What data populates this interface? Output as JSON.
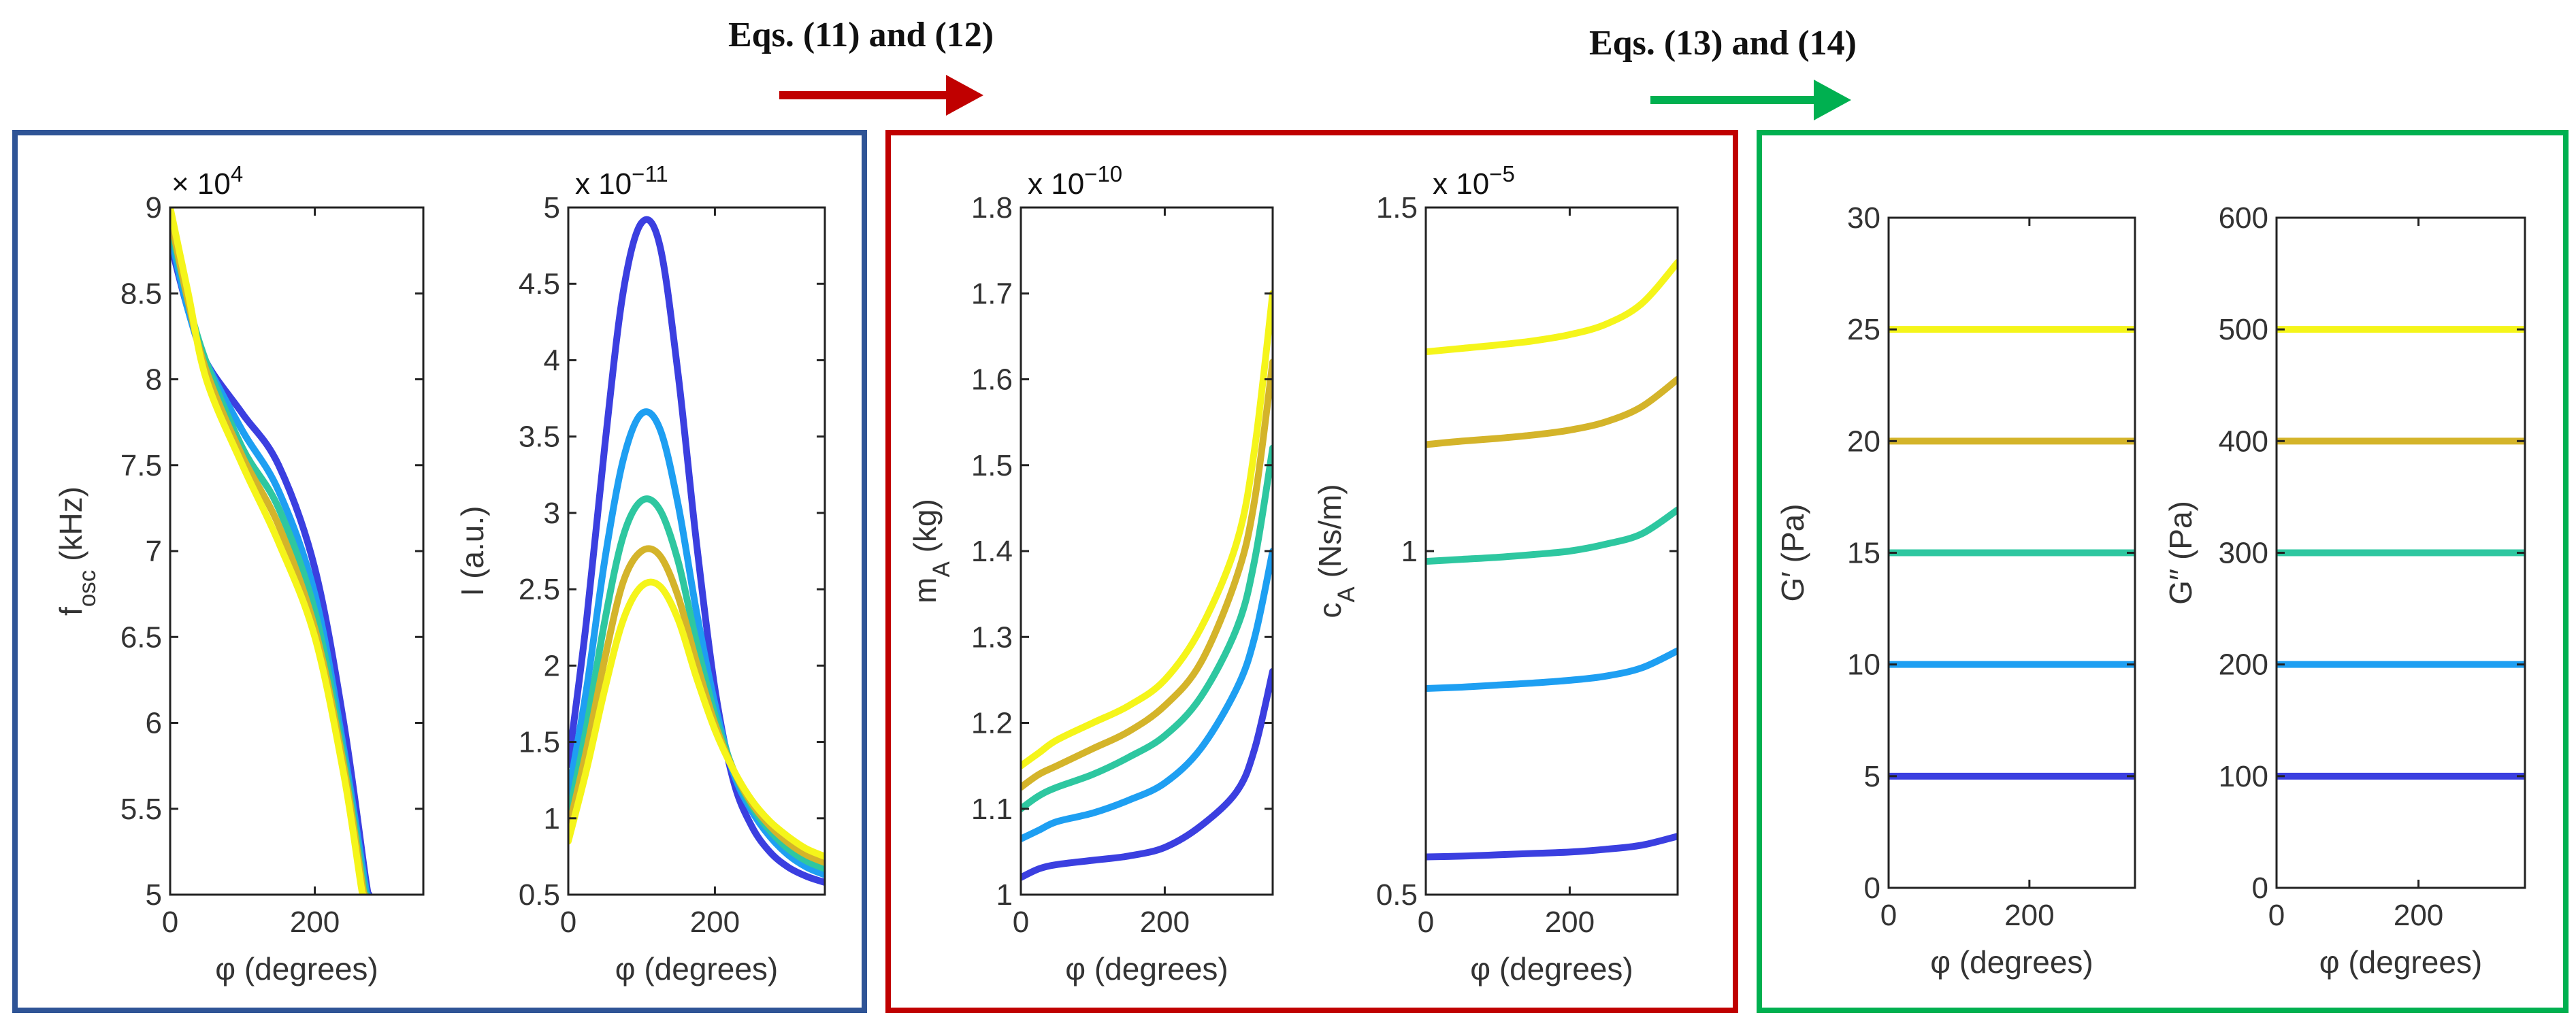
{
  "arrows": [
    {
      "label": "Eqs. (11) and (12)",
      "color": "#c00000"
    },
    {
      "label": "Eqs. (13) and (14)",
      "color": "#00b050"
    }
  ],
  "panels": [
    {
      "name": "panel-input",
      "border_color": "#2f5496"
    },
    {
      "name": "panel-lumped",
      "border_color": "#c00000"
    },
    {
      "name": "panel-material",
      "border_color": "#00b050"
    }
  ],
  "series_colors": [
    "#3b3fe0",
    "#1e9ff2",
    "#2ec7a0",
    "#d4b42a",
    "#f5f51a"
  ],
  "chart_data": [
    {
      "type": "line",
      "id": "fosc",
      "ylabel": "f_osc (kHz)",
      "xlabel": "φ (degrees)",
      "exponent": "× 10^4",
      "xlim": [
        0,
        350
      ],
      "ylim": [
        5,
        9
      ],
      "xticks": [
        0,
        200
      ],
      "xtick_labels": [
        "0",
        "200"
      ],
      "yticks": [
        5,
        5.5,
        6,
        6.5,
        7,
        7.5,
        8,
        8.5,
        9
      ],
      "ytick_labels": [
        "5",
        "5.5",
        "6",
        "6.5",
        "7",
        "7.5",
        "8",
        "8.5",
        "9"
      ],
      "series": [
        {
          "name": "s1",
          "x": [
            0,
            25,
            50,
            100,
            150,
            200,
            240,
            270,
            275
          ],
          "y": [
            8.8,
            8.4,
            8.1,
            7.8,
            7.5,
            6.9,
            6.0,
            5.1,
            5.0
          ]
        },
        {
          "name": "s2",
          "x": [
            0,
            25,
            50,
            100,
            150,
            200,
            240,
            270,
            273
          ],
          "y": [
            8.85,
            8.4,
            8.1,
            7.7,
            7.35,
            6.75,
            5.85,
            5.05,
            5.0
          ]
        },
        {
          "name": "s3",
          "x": [
            0,
            25,
            50,
            100,
            150,
            200,
            240,
            268,
            271
          ],
          "y": [
            8.9,
            8.45,
            8.1,
            7.6,
            7.25,
            6.65,
            5.8,
            5.05,
            5.0
          ]
        },
        {
          "name": "s4",
          "x": [
            0,
            25,
            50,
            100,
            150,
            200,
            240,
            266,
            269
          ],
          "y": [
            8.95,
            8.45,
            8.05,
            7.55,
            7.15,
            6.55,
            5.75,
            5.05,
            5.0
          ]
        },
        {
          "name": "s5",
          "x": [
            0,
            25,
            50,
            100,
            150,
            200,
            240,
            264,
            267
          ],
          "y": [
            9.0,
            8.5,
            8.0,
            7.5,
            7.05,
            6.5,
            5.7,
            5.05,
            5.0
          ]
        }
      ]
    },
    {
      "type": "line",
      "id": "intensity",
      "ylabel": "I (a.u.)",
      "xlabel": "φ (degrees)",
      "exponent": "x 10^−11",
      "xlim": [
        0,
        350
      ],
      "ylim": [
        0.5,
        5
      ],
      "xticks": [
        0,
        200
      ],
      "xtick_labels": [
        "0",
        "200"
      ],
      "yticks": [
        0.5,
        1,
        1.5,
        2,
        2.5,
        3,
        3.5,
        4,
        4.5,
        5
      ],
      "ytick_labels": [
        "0.5",
        "1",
        "1.5",
        "2",
        "2.5",
        "3",
        "3.5",
        "4",
        "4.5",
        "5"
      ],
      "series": [
        {
          "name": "s1",
          "x": [
            0,
            25,
            50,
            75,
            100,
            125,
            150,
            175,
            200,
            225,
            250,
            275,
            300,
            325,
            350
          ],
          "y": [
            1.35,
            2.3,
            3.45,
            4.45,
            4.9,
            4.75,
            3.9,
            2.8,
            1.85,
            1.25,
            0.95,
            0.78,
            0.68,
            0.62,
            0.58
          ]
        },
        {
          "name": "s2",
          "x": [
            0,
            25,
            50,
            75,
            100,
            125,
            150,
            175,
            200,
            225,
            250,
            275,
            300,
            325,
            350
          ],
          "y": [
            1.15,
            1.85,
            2.7,
            3.35,
            3.65,
            3.55,
            3.05,
            2.35,
            1.75,
            1.3,
            1.05,
            0.88,
            0.76,
            0.68,
            0.63
          ]
        },
        {
          "name": "s3",
          "x": [
            0,
            25,
            50,
            75,
            100,
            125,
            150,
            175,
            200,
            225,
            250,
            275,
            300,
            325,
            350
          ],
          "y": [
            1.0,
            1.6,
            2.3,
            2.85,
            3.08,
            3.02,
            2.68,
            2.15,
            1.68,
            1.32,
            1.08,
            0.92,
            0.8,
            0.72,
            0.67
          ]
        },
        {
          "name": "s4",
          "x": [
            0,
            25,
            50,
            75,
            100,
            125,
            150,
            175,
            200,
            225,
            250,
            275,
            300,
            325,
            350
          ],
          "y": [
            0.92,
            1.45,
            2.05,
            2.55,
            2.75,
            2.72,
            2.45,
            2.02,
            1.62,
            1.32,
            1.1,
            0.95,
            0.84,
            0.76,
            0.71
          ]
        },
        {
          "name": "s5",
          "x": [
            0,
            25,
            50,
            75,
            100,
            125,
            150,
            175,
            200,
            225,
            250,
            275,
            300,
            325,
            350
          ],
          "y": [
            0.85,
            1.32,
            1.85,
            2.3,
            2.52,
            2.52,
            2.3,
            1.92,
            1.58,
            1.32,
            1.12,
            0.98,
            0.88,
            0.8,
            0.75
          ]
        }
      ]
    },
    {
      "type": "line",
      "id": "mass",
      "ylabel": "m_A (kg)",
      "xlabel": "φ (degrees)",
      "exponent": "x 10^−10",
      "xlim": [
        0,
        350
      ],
      "ylim": [
        1,
        1.8
      ],
      "xticks": [
        0,
        200
      ],
      "xtick_labels": [
        "0",
        "200"
      ],
      "yticks": [
        1,
        1.1,
        1.2,
        1.3,
        1.4,
        1.5,
        1.6,
        1.7,
        1.8
      ],
      "ytick_labels": [
        "1",
        "1.1",
        "1.2",
        "1.3",
        "1.4",
        "1.5",
        "1.6",
        "1.7",
        "1.8"
      ],
      "series": [
        {
          "name": "s1",
          "x": [
            0,
            25,
            50,
            100,
            150,
            200,
            250,
            300,
            325,
            350
          ],
          "y": [
            1.02,
            1.03,
            1.035,
            1.04,
            1.045,
            1.055,
            1.08,
            1.12,
            1.17,
            1.26
          ]
        },
        {
          "name": "s2",
          "x": [
            0,
            25,
            50,
            100,
            150,
            200,
            250,
            300,
            325,
            350
          ],
          "y": [
            1.065,
            1.075,
            1.085,
            1.095,
            1.11,
            1.13,
            1.17,
            1.24,
            1.3,
            1.4
          ]
        },
        {
          "name": "s3",
          "x": [
            0,
            25,
            50,
            100,
            150,
            200,
            250,
            300,
            325,
            350
          ],
          "y": [
            1.1,
            1.115,
            1.125,
            1.14,
            1.16,
            1.185,
            1.23,
            1.31,
            1.39,
            1.52
          ]
        },
        {
          "name": "s4",
          "x": [
            0,
            25,
            50,
            100,
            150,
            200,
            250,
            300,
            325,
            350
          ],
          "y": [
            1.125,
            1.14,
            1.15,
            1.17,
            1.19,
            1.22,
            1.27,
            1.37,
            1.46,
            1.62
          ]
        },
        {
          "name": "s5",
          "x": [
            0,
            25,
            50,
            100,
            150,
            200,
            250,
            300,
            325,
            350
          ],
          "y": [
            1.15,
            1.165,
            1.18,
            1.2,
            1.22,
            1.25,
            1.31,
            1.41,
            1.52,
            1.7
          ]
        }
      ]
    },
    {
      "type": "line",
      "id": "damping",
      "ylabel": "c_A (Ns/m)",
      "xlabel": "φ (degrees)",
      "exponent": "x 10^−5",
      "xlim": [
        0,
        350
      ],
      "ylim": [
        0.5,
        1.5
      ],
      "xticks": [
        0,
        200
      ],
      "xtick_labels": [
        "0",
        "200"
      ],
      "yticks": [
        0.5,
        1,
        1.5
      ],
      "ytick_labels": [
        "0.5",
        "1",
        "1.5"
      ],
      "series": [
        {
          "name": "s1",
          "x": [
            0,
            50,
            100,
            150,
            200,
            250,
            300,
            350
          ],
          "y": [
            0.555,
            0.556,
            0.558,
            0.56,
            0.562,
            0.566,
            0.572,
            0.585
          ]
        },
        {
          "name": "s2",
          "x": [
            0,
            50,
            100,
            150,
            200,
            250,
            300,
            350
          ],
          "y": [
            0.8,
            0.802,
            0.805,
            0.808,
            0.812,
            0.818,
            0.83,
            0.855
          ]
        },
        {
          "name": "s3",
          "x": [
            0,
            50,
            100,
            150,
            200,
            250,
            300,
            350
          ],
          "y": [
            0.985,
            0.988,
            0.991,
            0.995,
            1.0,
            1.01,
            1.025,
            1.06
          ]
        },
        {
          "name": "s4",
          "x": [
            0,
            50,
            100,
            150,
            200,
            250,
            300,
            350
          ],
          "y": [
            1.155,
            1.16,
            1.164,
            1.169,
            1.176,
            1.188,
            1.21,
            1.25
          ]
        },
        {
          "name": "s5",
          "x": [
            0,
            50,
            100,
            150,
            200,
            250,
            300,
            350
          ],
          "y": [
            1.29,
            1.295,
            1.3,
            1.306,
            1.315,
            1.33,
            1.36,
            1.42
          ]
        }
      ]
    },
    {
      "type": "line",
      "id": "storage",
      "ylabel": "G′ (Pa)",
      "xlabel": "φ (degrees)",
      "exponent": "",
      "xlim": [
        0,
        350
      ],
      "ylim": [
        0,
        30
      ],
      "xticks": [
        0,
        200
      ],
      "xtick_labels": [
        "0",
        "200"
      ],
      "yticks": [
        0,
        5,
        10,
        15,
        20,
        25,
        30
      ],
      "ytick_labels": [
        "0",
        "5",
        "10",
        "15",
        "20",
        "25",
        "30"
      ],
      "series": [
        {
          "name": "s1",
          "x": [
            0,
            350
          ],
          "y": [
            5,
            5
          ]
        },
        {
          "name": "s2",
          "x": [
            0,
            350
          ],
          "y": [
            10,
            10
          ]
        },
        {
          "name": "s3",
          "x": [
            0,
            350
          ],
          "y": [
            15,
            15
          ]
        },
        {
          "name": "s4",
          "x": [
            0,
            350
          ],
          "y": [
            20,
            20
          ]
        },
        {
          "name": "s5",
          "x": [
            0,
            350
          ],
          "y": [
            25,
            25
          ]
        }
      ]
    },
    {
      "type": "line",
      "id": "loss",
      "ylabel": "G′′ (Pa)",
      "xlabel": "φ (degrees)",
      "exponent": "",
      "xlim": [
        0,
        350
      ],
      "ylim": [
        0,
        600
      ],
      "xticks": [
        0,
        200
      ],
      "xtick_labels": [
        "0",
        "200"
      ],
      "yticks": [
        0,
        100,
        200,
        300,
        400,
        500,
        600
      ],
      "ytick_labels": [
        "0",
        "100",
        "200",
        "300",
        "400",
        "500",
        "600"
      ],
      "series": [
        {
          "name": "s1",
          "x": [
            0,
            350
          ],
          "y": [
            100,
            100
          ]
        },
        {
          "name": "s2",
          "x": [
            0,
            350
          ],
          "y": [
            200,
            200
          ]
        },
        {
          "name": "s3",
          "x": [
            0,
            350
          ],
          "y": [
            300,
            300
          ]
        },
        {
          "name": "s4",
          "x": [
            0,
            350
          ],
          "y": [
            400,
            400
          ]
        },
        {
          "name": "s5",
          "x": [
            0,
            350
          ],
          "y": [
            500,
            500
          ]
        }
      ]
    }
  ]
}
